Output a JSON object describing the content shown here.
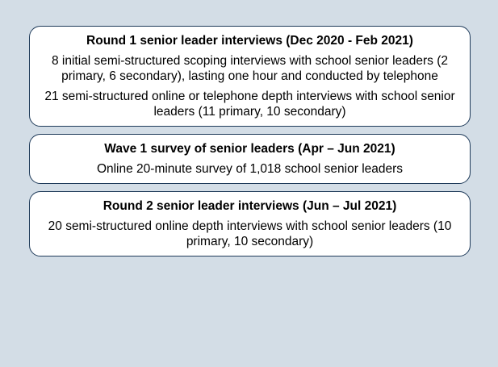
{
  "boxes": [
    {
      "title": "Round 1 senior leader interviews (Dec 2020 - Feb 2021)",
      "items": [
        "8 initial semi-structured scoping interviews with school senior leaders (2 primary, 6 secondary), lasting one hour and conducted by telephone",
        "21 semi-structured online or telephone depth interviews with school senior leaders (11 primary, 10 secondary)"
      ]
    },
    {
      "title": "Wave 1 survey of senior leaders (Apr – Jun 2021)",
      "items": [
        "Online 20-minute survey of 1,018 school senior leaders"
      ]
    },
    {
      "title": "Round 2 senior leader interviews (Jun – Jul 2021)",
      "items": [
        "20 semi-structured online depth interviews with school senior leaders (10 primary, 10 secondary)"
      ]
    }
  ]
}
